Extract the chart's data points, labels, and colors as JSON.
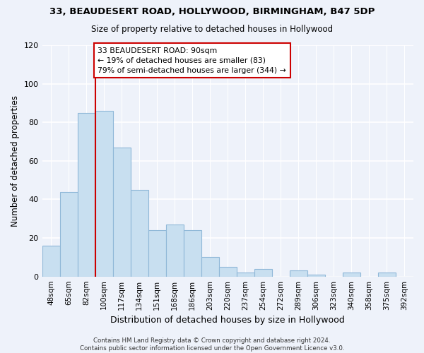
{
  "title": "33, BEAUDESERT ROAD, HOLLYWOOD, BIRMINGHAM, B47 5DP",
  "subtitle": "Size of property relative to detached houses in Hollywood",
  "xlabel": "Distribution of detached houses by size in Hollywood",
  "ylabel": "Number of detached properties",
  "bar_labels": [
    "48sqm",
    "65sqm",
    "82sqm",
    "100sqm",
    "117sqm",
    "134sqm",
    "151sqm",
    "168sqm",
    "186sqm",
    "203sqm",
    "220sqm",
    "237sqm",
    "254sqm",
    "272sqm",
    "289sqm",
    "306sqm",
    "323sqm",
    "340sqm",
    "358sqm",
    "375sqm",
    "392sqm"
  ],
  "bar_values": [
    16,
    44,
    85,
    86,
    67,
    45,
    24,
    27,
    24,
    10,
    5,
    2,
    4,
    0,
    3,
    1,
    0,
    2,
    0,
    2,
    0
  ],
  "bar_color": "#c8dff0",
  "bar_edge_color": "#90b8d8",
  "vline_x_index": 2.5,
  "vline_color": "#cc0000",
  "annotation_text": "33 BEAUDESERT ROAD: 90sqm\n← 19% of detached houses are smaller (83)\n79% of semi-detached houses are larger (344) →",
  "annotation_box_facecolor": "#ffffff",
  "annotation_box_edgecolor": "#cc0000",
  "ylim": [
    0,
    120
  ],
  "yticks": [
    0,
    20,
    40,
    60,
    80,
    100,
    120
  ],
  "footer": "Contains HM Land Registry data © Crown copyright and database right 2024.\nContains public sector information licensed under the Open Government Licence v3.0.",
  "background_color": "#eef2fa"
}
